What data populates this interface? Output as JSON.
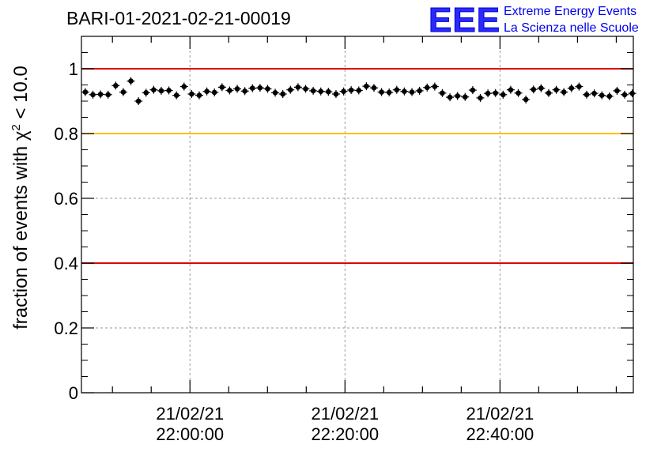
{
  "chart_data": {
    "type": "scatter",
    "title": "BARI-01-2021-02-21-00019",
    "ylabel": "fraction of events with χ² < 10.0",
    "ylabel_text": "fraction of events with ",
    "ylabel_chi": "χ",
    "ylabel_sup": "2",
    "ylabel_tail": " < 10.0",
    "ylim": [
      0,
      1.1
    ],
    "yticks": [
      0,
      0.2,
      0.4,
      0.6,
      0.8,
      1
    ],
    "ytick_labels": [
      "0",
      "0.2",
      "0.4",
      "0.6",
      "0.8",
      "1"
    ],
    "xlim_minutes": [
      -14,
      57.2
    ],
    "xticks": [
      {
        "minute": 0,
        "date": "21/02/21",
        "time": "22:00:00"
      },
      {
        "minute": 20,
        "date": "21/02/21",
        "time": "22:20:00"
      },
      {
        "minute": 40,
        "date": "21/02/21",
        "time": "22:40:00"
      }
    ],
    "grid": true,
    "reference_lines": [
      {
        "y": 1.0,
        "color": "#e00000"
      },
      {
        "y": 0.8,
        "color": "#ffc000"
      },
      {
        "y": 0.4,
        "color": "#e00000"
      }
    ],
    "marker_color": "#000000",
    "x_start_minute": -13.5,
    "x_step_minutes": 0.98,
    "values": [
      0.928,
      0.92,
      0.921,
      0.92,
      0.948,
      0.928,
      0.962,
      0.9,
      0.926,
      0.935,
      0.932,
      0.933,
      0.918,
      0.945,
      0.922,
      0.918,
      0.93,
      0.927,
      0.943,
      0.933,
      0.938,
      0.931,
      0.94,
      0.941,
      0.938,
      0.926,
      0.922,
      0.935,
      0.943,
      0.938,
      0.932,
      0.93,
      0.929,
      0.922,
      0.93,
      0.934,
      0.933,
      0.946,
      0.941,
      0.928,
      0.927,
      0.935,
      0.93,
      0.928,
      0.932,
      0.942,
      0.945,
      0.925,
      0.912,
      0.916,
      0.913,
      0.934,
      0.91,
      0.924,
      0.925,
      0.92,
      0.935,
      0.925,
      0.905,
      0.936,
      0.94,
      0.925,
      0.935,
      0.928,
      0.94,
      0.945,
      0.92,
      0.924,
      0.918,
      0.915,
      0.932,
      0.92,
      0.924
    ]
  },
  "logo": {
    "letters": "EEE",
    "line1": "Extreme Energy Events",
    "line2": "La Scienza nelle Scuole"
  }
}
